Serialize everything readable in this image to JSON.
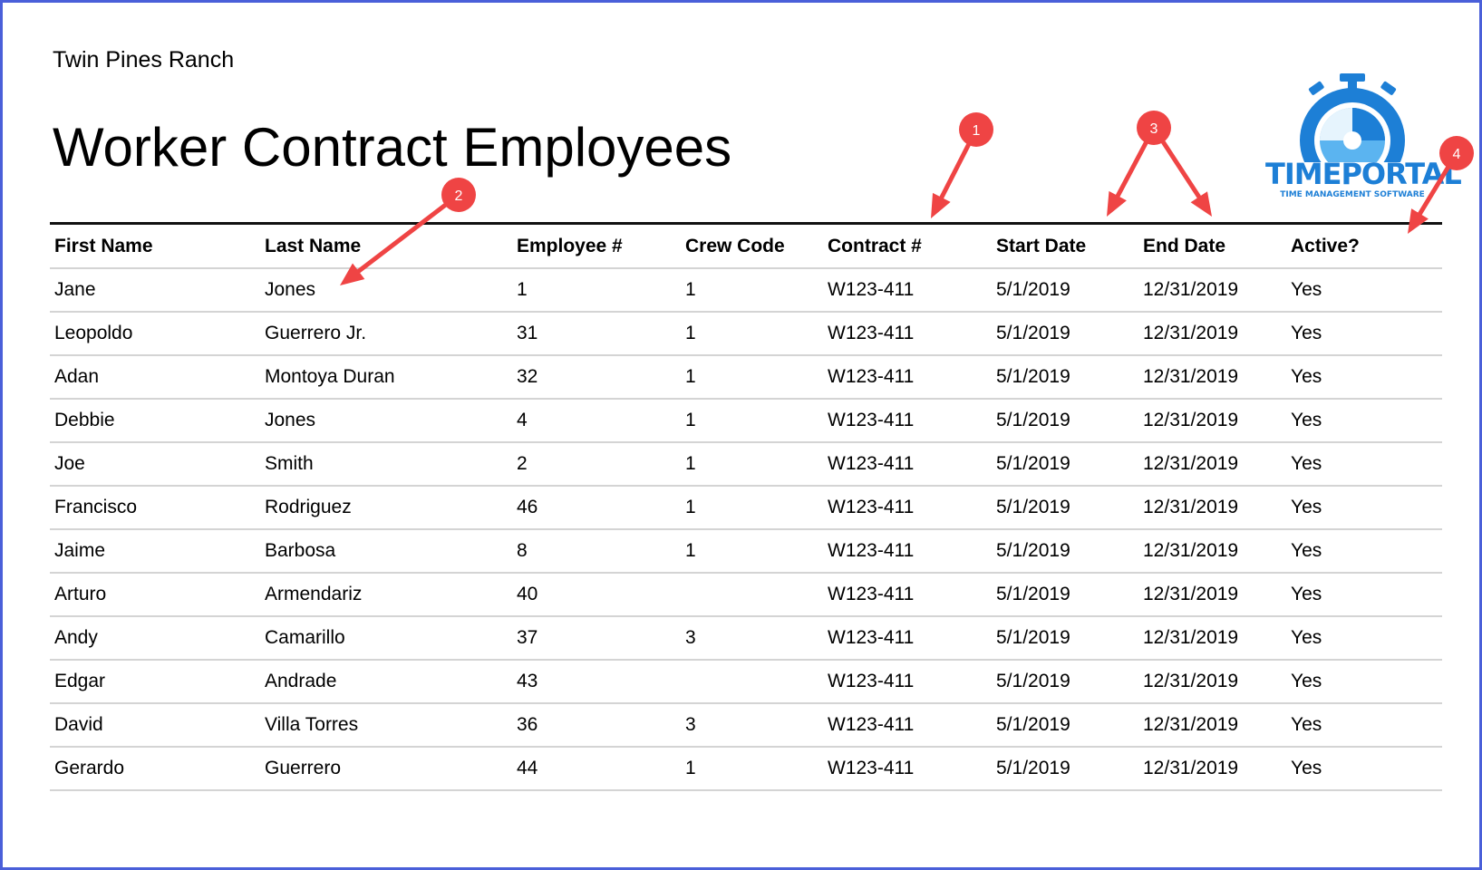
{
  "report": {
    "company": "Twin Pines Ranch",
    "title": "Worker Contract Employees"
  },
  "logo": {
    "name": "TIMEPORTAL",
    "tagline": "TIME MANAGEMENT SOFTWARE",
    "brand_color": "#1d7fd6"
  },
  "table": {
    "columns": [
      "First Name",
      "Last Name",
      "Employee #",
      "Crew Code",
      "Contract #",
      "Start Date",
      "End Date",
      "Active?"
    ],
    "rows": [
      [
        "Jane",
        "Jones",
        "1",
        "1",
        "W123-411",
        "5/1/2019",
        "12/31/2019",
        "Yes"
      ],
      [
        "Leopoldo",
        "Guerrero Jr.",
        "31",
        "1",
        "W123-411",
        "5/1/2019",
        "12/31/2019",
        "Yes"
      ],
      [
        "Adan",
        "Montoya Duran",
        "32",
        "1",
        "W123-411",
        "5/1/2019",
        "12/31/2019",
        "Yes"
      ],
      [
        "Debbie",
        "Jones",
        "4",
        "1",
        "W123-411",
        "5/1/2019",
        "12/31/2019",
        "Yes"
      ],
      [
        "Joe",
        "Smith",
        "2",
        "1",
        "W123-411",
        "5/1/2019",
        "12/31/2019",
        "Yes"
      ],
      [
        "Francisco",
        "Rodriguez",
        "46",
        "1",
        "W123-411",
        "5/1/2019",
        "12/31/2019",
        "Yes"
      ],
      [
        "Jaime",
        "Barbosa",
        "8",
        "1",
        "W123-411",
        "5/1/2019",
        "12/31/2019",
        "Yes"
      ],
      [
        "Arturo",
        "Armendariz",
        "40",
        "",
        "W123-411",
        "5/1/2019",
        "12/31/2019",
        "Yes"
      ],
      [
        "Andy",
        "Camarillo",
        "37",
        "3",
        "W123-411",
        "5/1/2019",
        "12/31/2019",
        "Yes"
      ],
      [
        "Edgar",
        "Andrade",
        "43",
        "",
        "W123-411",
        "5/1/2019",
        "12/31/2019",
        "Yes"
      ],
      [
        "David",
        "Villa Torres",
        "36",
        "3",
        "W123-411",
        "5/1/2019",
        "12/31/2019",
        "Yes"
      ],
      [
        "Gerardo",
        "Guerrero",
        "44",
        "1",
        "W123-411",
        "5/1/2019",
        "12/31/2019",
        "Yes"
      ]
    ]
  },
  "annotations": {
    "color": "#ef4444",
    "markers": [
      "1",
      "2",
      "3",
      "4"
    ]
  },
  "frame_color": "#4a5fd9"
}
